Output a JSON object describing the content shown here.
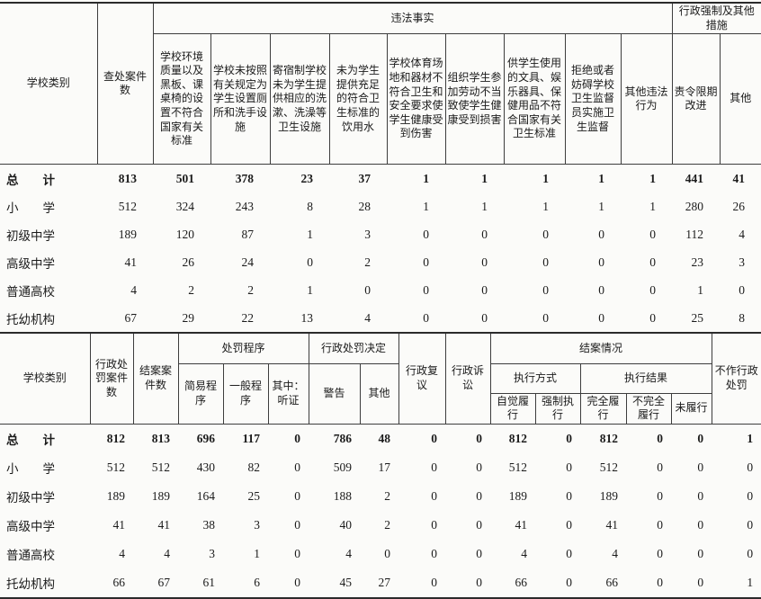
{
  "page": {
    "background": "#fbfbf9",
    "line_color": "#2b2b2b",
    "text_color": "#1b1b1b"
  },
  "table1": {
    "col_school": "学校类别",
    "col_cases": "查处案件数",
    "group_violations": "违法事实",
    "group_measures": "行政强制及其他措施",
    "violation_cols": [
      "学校环境质量以及黑板、课桌椅的设置不符合国家有关标准",
      "学校未按照有关规定为学生设置厕所和洗手设施",
      "寄宿制学校未为学生提供相应的洗漱、洗澡等卫生设施",
      "未为学生提供充足的符合卫生标准的饮用水",
      "学校体育场地和器材不符合卫生和安全要求使学生健康受到伤害",
      "组织学生参加劳动不当致使学生健康受到损害",
      "供学生使用的文具、娱乐器具、保健用品不符合国家有关卫生标准",
      "拒绝或者妨碍学校卫生监督员实施卫生监督",
      "其他违法行为"
    ],
    "measure_cols": [
      "责令限期改进",
      "其他"
    ],
    "rows": [
      {
        "label": "总　　计",
        "bold": true,
        "values": [
          813,
          501,
          378,
          23,
          37,
          1,
          1,
          1,
          1,
          1,
          441,
          41
        ]
      },
      {
        "label": "小　　学",
        "bold": false,
        "values": [
          512,
          324,
          243,
          8,
          28,
          1,
          1,
          1,
          1,
          1,
          280,
          26
        ]
      },
      {
        "label": "初级中学",
        "bold": false,
        "values": [
          189,
          120,
          87,
          1,
          3,
          0,
          0,
          0,
          0,
          0,
          112,
          4
        ]
      },
      {
        "label": "高级中学",
        "bold": false,
        "values": [
          41,
          26,
          24,
          0,
          2,
          0,
          0,
          0,
          0,
          0,
          23,
          3
        ]
      },
      {
        "label": "普通高校",
        "bold": false,
        "values": [
          4,
          2,
          2,
          1,
          0,
          0,
          0,
          0,
          0,
          0,
          1,
          0
        ]
      },
      {
        "label": "托幼机构",
        "bold": false,
        "values": [
          67,
          29,
          22,
          13,
          4,
          0,
          0,
          0,
          0,
          0,
          25,
          8
        ]
      }
    ]
  },
  "table2": {
    "col_school": "学校类别",
    "col_penalty_cases": "行政处罚案件数",
    "col_closed_cases": "结案案件数",
    "group_procedure": "处罚程序",
    "procedure_cols": [
      "简易程序",
      "一般程序",
      "其中：听证"
    ],
    "group_decision": "行政处罚决定",
    "decision_cols": [
      "警告",
      "其他"
    ],
    "col_reconsideration": "行政复议",
    "col_litigation": "行政诉讼",
    "group_closure": "结案情况",
    "group_exec_method": "执行方式",
    "exec_method_cols": [
      "自觉履行",
      "强制执行"
    ],
    "group_exec_result": "执行结果",
    "exec_result_cols": [
      "完全履行",
      "不完全履行",
      "未履行"
    ],
    "col_no_penalty": "不作行政处罚",
    "rows": [
      {
        "label": "总　　计",
        "bold": true,
        "values": [
          812,
          813,
          696,
          117,
          0,
          786,
          48,
          0,
          0,
          812,
          0,
          812,
          0,
          0,
          1
        ]
      },
      {
        "label": "小　　学",
        "bold": false,
        "values": [
          512,
          512,
          430,
          82,
          0,
          509,
          17,
          0,
          0,
          512,
          0,
          512,
          0,
          0,
          0
        ]
      },
      {
        "label": "初级中学",
        "bold": false,
        "values": [
          189,
          189,
          164,
          25,
          0,
          188,
          2,
          0,
          0,
          189,
          0,
          189,
          0,
          0,
          0
        ]
      },
      {
        "label": "高级中学",
        "bold": false,
        "values": [
          41,
          41,
          38,
          3,
          0,
          40,
          2,
          0,
          0,
          41,
          0,
          41,
          0,
          0,
          0
        ]
      },
      {
        "label": "普通高校",
        "bold": false,
        "values": [
          4,
          4,
          3,
          1,
          0,
          4,
          0,
          0,
          0,
          4,
          0,
          4,
          0,
          0,
          0
        ]
      },
      {
        "label": "托幼机构",
        "bold": false,
        "values": [
          66,
          67,
          61,
          6,
          0,
          45,
          27,
          0,
          0,
          66,
          0,
          66,
          0,
          0,
          1
        ]
      }
    ]
  }
}
